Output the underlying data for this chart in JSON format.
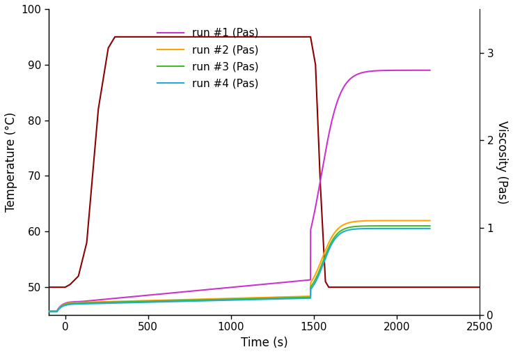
{
  "title": "",
  "xlabel": "Time (s)",
  "ylabel_left": "Temperature (°C)",
  "ylabel_right": "Viscosity (Pas)",
  "xlim": [
    -100,
    2500
  ],
  "ylim_left": [
    45,
    100
  ],
  "ylim_right": [
    0,
    3.5
  ],
  "xticks": [
    0,
    500,
    1000,
    1500,
    2000,
    2500
  ],
  "yticks_left": [
    50,
    60,
    70,
    80,
    90,
    100
  ],
  "yticks_right": [
    0,
    1,
    2,
    3
  ],
  "colors": {
    "temperature": "#8B0000",
    "run1": "#CC33CC",
    "run2": "#FFA500",
    "run3": "#44BB22",
    "run4": "#22AADD"
  },
  "legend_labels": [
    "run #1 (Pas)",
    "run #2 (Pas)",
    "run #3 (Pas)",
    "run #4 (Pas)"
  ]
}
